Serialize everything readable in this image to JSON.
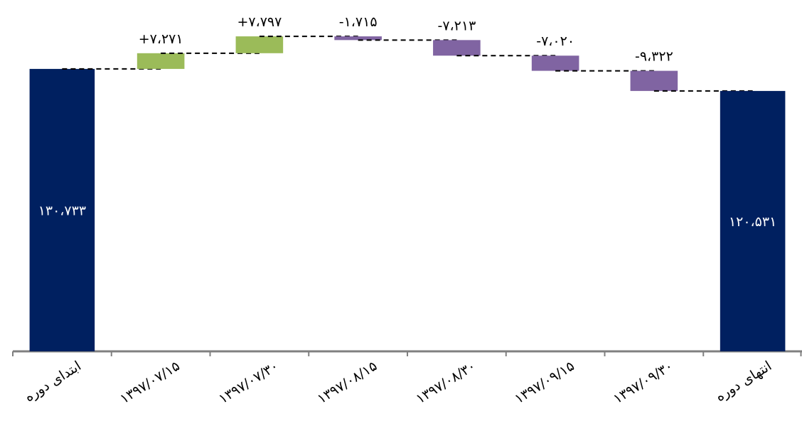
{
  "chart_data": {
    "type": "waterfall",
    "categories": [
      "ابتدای دوره",
      "۱۳۹۷/۰۷/۱۵",
      "۱۳۹۷/۰۷/۳۰",
      "۱۳۹۷/۰۸/۱۵",
      "۱۳۹۷/۰۸/۳۰",
      "۱۳۹۷/۰۹/۱۵",
      "۱۳۹۷/۰۹/۳۰",
      "انتهای دوره"
    ],
    "values": [
      130733,
      7271,
      7797,
      -1715,
      -7213,
      -7020,
      -9322,
      120531
    ],
    "value_labels": [
      "۱۳۰،۷۳۳",
      "+۷،۲۷۱",
      "+۷،۷۹۷",
      "-۱،۷۱۵",
      "-۷،۲۱۳",
      "-۷،۰۲۰",
      "-۹،۳۲۲",
      "۱۲۰،۵۳۱"
    ],
    "colors": {
      "total": "#002060",
      "increase": "#9bbb59",
      "decrease": "#8064a2"
    },
    "ylim": [
      0,
      160000
    ]
  }
}
